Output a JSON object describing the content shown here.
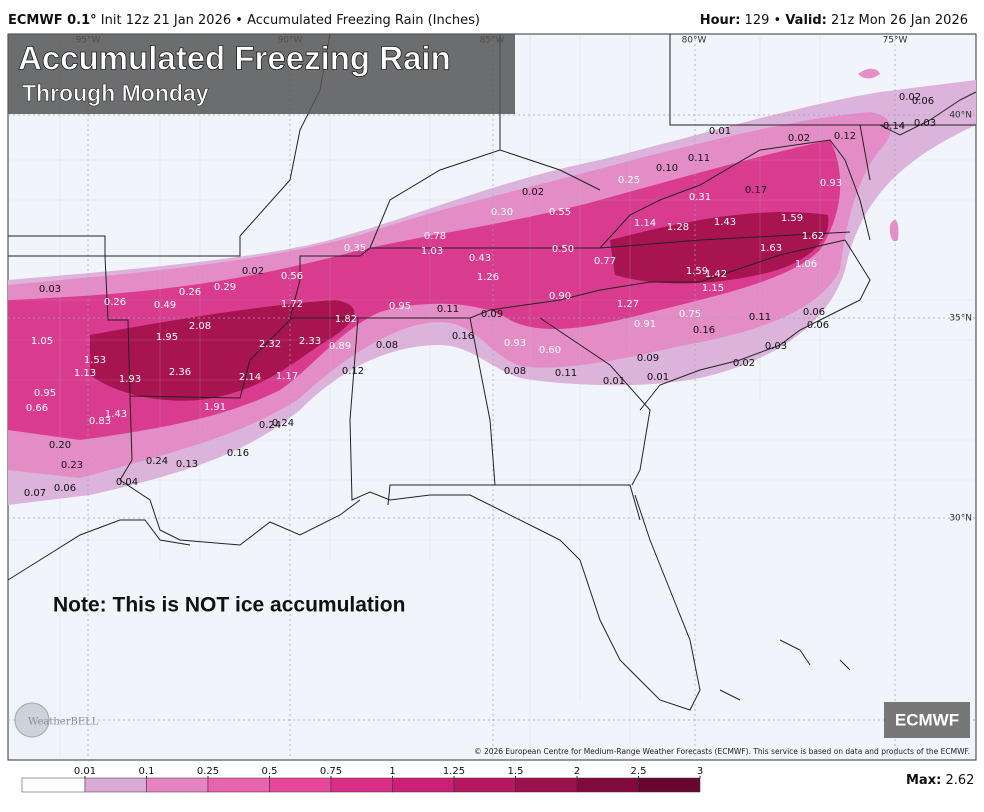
{
  "header": {
    "model": "ECMWF 0.1°",
    "init": "Init 12z 21 Jan 2026",
    "separator": "•",
    "product": "Accumulated Freezing Rain (Inches)",
    "hour_label": "Hour:",
    "hour": "129",
    "valid_label": "Valid:",
    "valid": "21z Mon 26 Jan 2026"
  },
  "title": "Accumulated Freezing Rain",
  "subtitle": "Through Monday",
  "note": "Note: This is NOT ice accumulation",
  "map": {
    "lon_labels": [
      "95°W",
      "90°W",
      "85°W",
      "80°W",
      "75°W"
    ],
    "lat_labels": [
      "40°N",
      "35°N",
      "30°N"
    ],
    "point_labels": [
      "0.03",
      "0.26",
      "0.49",
      "0.26",
      "0.29",
      "0.02",
      "0.56",
      "0.35",
      "0.78",
      "1.03",
      "0.43",
      "1.26",
      "0.30",
      "0.02",
      "0.55",
      "0.50",
      "0.77",
      "0.90",
      "1.27",
      "0.91",
      "0.75",
      "0.16",
      "0.11",
      "0.93",
      "0.60",
      "0.09",
      "0.01",
      "0.01",
      "0.11",
      "0.08",
      "0.16",
      "0.11",
      "0.09",
      "0.95",
      "1.82",
      "1.72",
      "2.08",
      "1.95",
      "1.05",
      "1.53",
      "1.13",
      "1.93",
      "2.36",
      "2.32",
      "2.33",
      "0.89",
      "0.08",
      "0.12",
      "2.14",
      "1.17",
      "1.91",
      "0.95",
      "0.66",
      "0.83",
      "1.43",
      "0.24",
      "0.24",
      "0.20",
      "0.23",
      "0.24",
      "0.13",
      "0.16",
      "0.04",
      "0.07",
      "0.06",
      "0.10",
      "0.11",
      "0.01",
      "0.25",
      "0.31",
      "0.17",
      "1.14",
      "1.28",
      "1.43",
      "1.59",
      "1.62",
      "1.63",
      "1.06",
      "1.59",
      "1.42",
      "1.15",
      "0.02",
      "0.12",
      "0.93",
      "0.14",
      "0.02",
      "0.06",
      "0.03",
      "0.06",
      "0.06",
      "0.03",
      "0.02"
    ]
  },
  "badge": "ECMWF",
  "logo": "WeatherBELL",
  "copyright": "© 2026 European Centre for Medium-Range Weather Forecasts (ECMWF). This service is based on data and products of the ECMWF.",
  "legend": {
    "ticks": [
      0.01,
      0.1,
      0.25,
      0.5,
      0.75,
      1,
      1.25,
      1.5,
      2,
      2.5,
      3
    ],
    "colors": [
      "#ffffff",
      "#d9aad6",
      "#e683c3",
      "#e862ad",
      "#e6479c",
      "#dc2e88",
      "#cc1f77",
      "#b5185f",
      "#9c114e",
      "#82093d",
      "#670530"
    ],
    "max_label": "Max:",
    "max": "2.62"
  }
}
